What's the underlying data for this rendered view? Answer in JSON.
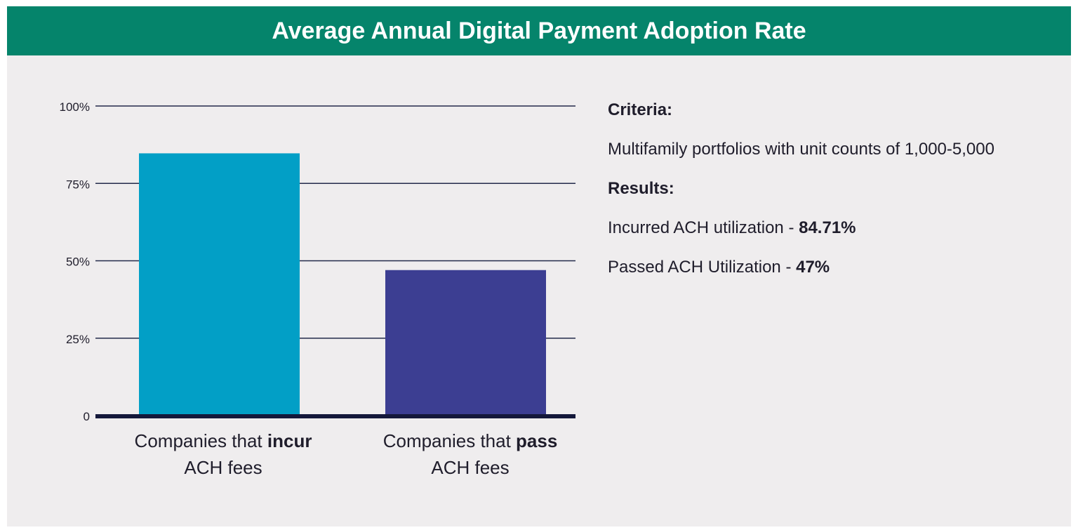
{
  "colors": {
    "header_bg": "#05846b",
    "panel_bg": "#efedee",
    "bar_incur": "#029fc6",
    "bar_pass": "#3c3e92",
    "grid": "#232a4a",
    "text": "#1f1d2b"
  },
  "header": {
    "title": "Average Annual Digital Payment Adoption Rate"
  },
  "chart_data": {
    "type": "bar",
    "title": "Average Annual Digital Payment Adoption Rate",
    "xlabel": "",
    "ylabel": "",
    "ylim": [
      0,
      100
    ],
    "yticks": [
      0,
      25,
      50,
      75,
      100
    ],
    "ytick_labels": [
      "0",
      "25%",
      "50%",
      "75%",
      "100%"
    ],
    "grid": true,
    "categories": [
      {
        "prefix": "Companies that ",
        "emphasis": "incur",
        "suffix": "ACH fees"
      },
      {
        "prefix": "Companies that ",
        "emphasis": "pass",
        "suffix": "ACH fees"
      }
    ],
    "values": [
      84.71,
      47
    ],
    "bar_colors": [
      "#029fc6",
      "#3c3e92"
    ]
  },
  "info": {
    "criteria_heading": "Criteria:",
    "criteria_text": "Multifamily portfolios with unit counts of 1,000-5,000",
    "results_heading": "Results:",
    "incurred_label": "Incurred ACH utilization - ",
    "incurred_value": "84.71%",
    "passed_label": "Passed ACH Utilization - ",
    "passed_value": "47%"
  }
}
